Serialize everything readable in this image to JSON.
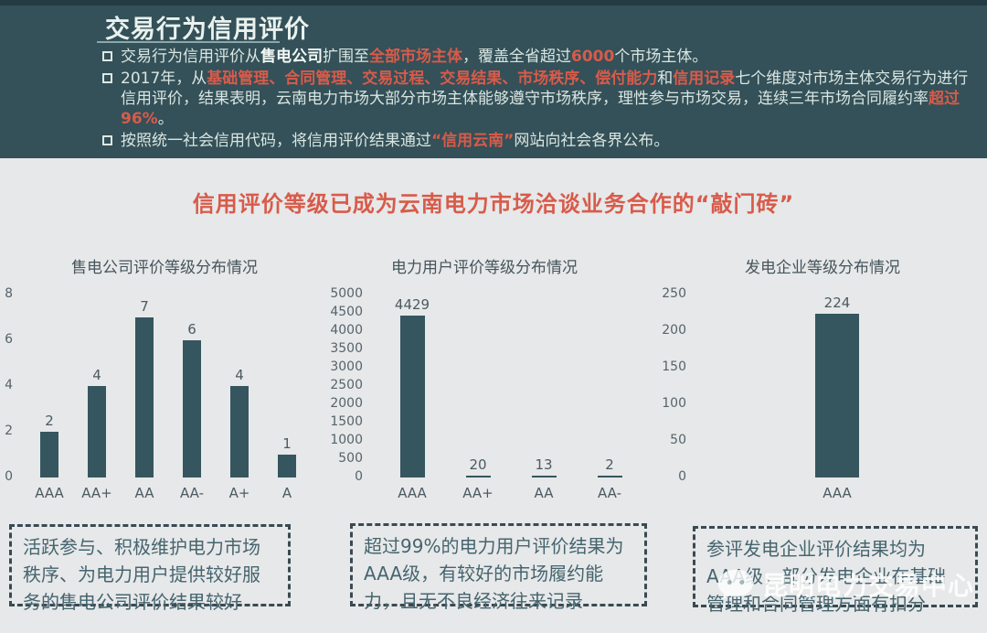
{
  "colors": {
    "header_bg": "#345058",
    "header_top_strip": "#243b43",
    "body_bg": "#e7e8e9",
    "accent_red": "#d85b4a",
    "bar_fill": "#35565f",
    "header_text": "#d9e6e2",
    "chart_text": "#4c5a62",
    "note_text": "#45656f",
    "note_border": "#3a4a52"
  },
  "header": {
    "title": "交易行为信用评价",
    "bullets": [
      {
        "segments": [
          {
            "t": "交易行为信用评价从",
            "s": "n"
          },
          {
            "t": "售电公司",
            "s": "b"
          },
          {
            "t": "扩围至",
            "s": "n"
          },
          {
            "t": "全部市场主体",
            "s": "r"
          },
          {
            "t": "，覆盖全省超过",
            "s": "n"
          },
          {
            "t": "6000",
            "s": "r"
          },
          {
            "t": "个市场主体。",
            "s": "n"
          }
        ]
      },
      {
        "segments": [
          {
            "t": "2017年，从",
            "s": "n"
          },
          {
            "t": "基础管理、合同管理、交易过程、交易结果、市场秩序、偿付能力",
            "s": "r"
          },
          {
            "t": "和",
            "s": "n"
          },
          {
            "t": "信用记录",
            "s": "r"
          },
          {
            "t": "七个维度对市场主体交易行为进行信用评价，结果表明，云南电力市场大部分市场主体能够遵守市场秩序，理性参与市场交易，连续三年市场合同履约率",
            "s": "n"
          },
          {
            "t": "超过96%",
            "s": "r"
          },
          {
            "t": "。",
            "s": "n"
          }
        ]
      },
      {
        "segments": [
          {
            "t": "按照统一社会信用代码，将信用评价结果通过",
            "s": "n"
          },
          {
            "t": "“信用云南”",
            "s": "r"
          },
          {
            "t": "网站向社会各界公布。",
            "s": "n"
          }
        ]
      }
    ]
  },
  "headline": "信用评价等级已成为云南电力市场洽谈业务合作的“敲门砖”",
  "chart_data": [
    {
      "type": "bar",
      "title": "售电公司评价等级分布情况",
      "categories": [
        "AAA",
        "AA+",
        "AA",
        "AA-",
        "A+",
        "A"
      ],
      "values": [
        2,
        4,
        7,
        6,
        4,
        1
      ],
      "ylim": [
        0,
        8
      ],
      "ytick_step": 2,
      "grid": false,
      "legend": false,
      "data_labels": true
    },
    {
      "type": "bar",
      "title": "电力用户评价等级分布情况",
      "categories": [
        "AAA",
        "AA+",
        "AA",
        "AA-"
      ],
      "values": [
        4429,
        20,
        13,
        2
      ],
      "ylim": [
        0,
        5000
      ],
      "ytick_step": 500,
      "grid": false,
      "legend": false,
      "data_labels": true
    },
    {
      "type": "bar",
      "title": "发电企业等级分布情况",
      "categories": [
        "AAA"
      ],
      "values": [
        224
      ],
      "ylim": [
        0,
        250
      ],
      "ytick_step": 50,
      "grid": false,
      "legend": false,
      "data_labels": true
    }
  ],
  "notes": [
    {
      "text": "活跃参与、积极维护电力市场秩序、为电力用户提供较好服务的售电公司评价结果较好"
    },
    {
      "text": "超过99%的电力用户评价结果为AAA级，有较好的市场履约能力，且无不良经济往来记录"
    },
    {
      "text": "参评发电企业评价结果均为AAA级，部分发电企业在基础管理和合同管理方面有扣分"
    }
  ],
  "watermark": {
    "icon": "wechat-icon",
    "text": "昆明电力交易中心"
  }
}
